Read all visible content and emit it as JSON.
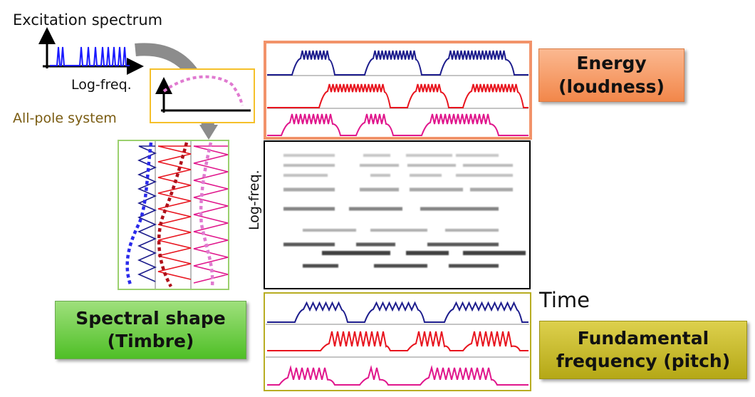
{
  "labels": {
    "excitation_spectrum": "Excitation spectrum",
    "log_freq": "Log-freq.",
    "all_pole_system": "All-pole system",
    "time": "Time"
  },
  "callouts": {
    "energy": [
      "Energy",
      "(loudness)"
    ],
    "timbre": [
      "Spectral shape",
      "(Timbre)"
    ],
    "pitch": [
      "Fundamental",
      "frequency (pitch)"
    ]
  },
  "colors": {
    "navy": "#1c1c8c",
    "red": "#e8141e",
    "magenta": "#e0168c",
    "blue_dots": "#2a2aeb",
    "darkred_dots": "#b0101a",
    "pink_dots": "#e07ad0",
    "energy_frame": "#f2936a",
    "timbre_frame": "#9bd06e",
    "pitch_frame": "#b8ad22",
    "allpole_frame": "#f5c02a"
  }
}
